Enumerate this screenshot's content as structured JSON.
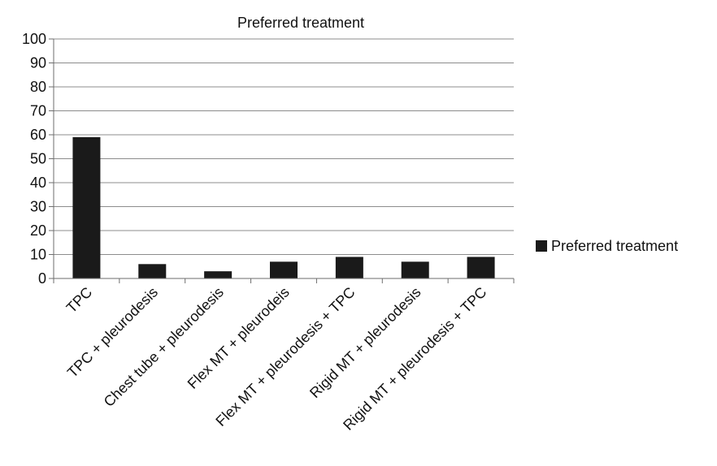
{
  "chart_data": {
    "type": "bar",
    "title": "Preferred treatment",
    "xlabel": "",
    "ylabel": "",
    "categories": [
      "TPC",
      "TPC + pleurodesis",
      "Chest tube + pleurodesis",
      "Flex MT + pleurodeis",
      "Flex MT + pleurodesis + TPC",
      "Rigid MT + pleurodesis",
      "Rigid MT + pleurodesis + TPC"
    ],
    "series": [
      {
        "name": "Preferred treatment",
        "values": [
          59,
          6,
          3,
          7,
          9,
          7,
          9
        ]
      }
    ],
    "ylim": [
      0,
      100
    ],
    "yticks": [
      0,
      10,
      20,
      30,
      40,
      50,
      60,
      70,
      80,
      90,
      100
    ],
    "grid": true,
    "legend": "right",
    "colors": {
      "bar": "#1a1a1a",
      "grid": "#8c8c8c",
      "axis": "#6e6e6e"
    }
  }
}
